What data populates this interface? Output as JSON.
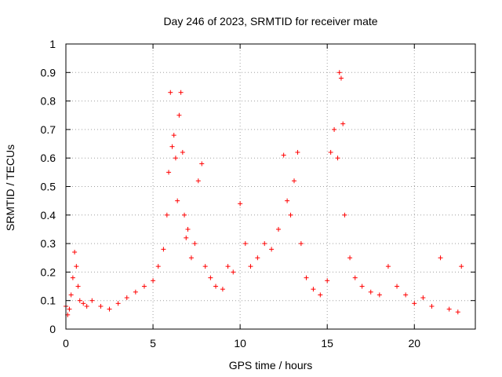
{
  "chart_data": {
    "type": "scatter",
    "title": "Day 246 of 2023, SRMTID for receiver mate",
    "xlabel": "GPS time / hours",
    "ylabel": "SRMTID / TECUs",
    "xlim": [
      0,
      23.5
    ],
    "ylim": [
      0,
      1
    ],
    "xticks": [
      0,
      5,
      10,
      15,
      20
    ],
    "xtick_labels": [
      "0",
      "5",
      "10",
      "15",
      "20"
    ],
    "yticks": [
      0,
      0.1,
      0.2,
      0.3,
      0.4,
      0.5,
      0.6,
      0.7,
      0.8,
      0.9,
      1
    ],
    "ytick_labels": [
      "0",
      "0.1",
      "0.2",
      "0.3",
      "0.4",
      "0.5",
      "0.6",
      "0.7",
      "0.8",
      "0.9",
      "1"
    ],
    "grid": true,
    "marker": "+",
    "color": "#ff0000",
    "series": [
      {
        "name": "SRMTID",
        "x": [
          0.0,
          0.1,
          0.2,
          0.3,
          0.4,
          0.5,
          0.6,
          0.7,
          0.8,
          1.0,
          1.2,
          1.5,
          2.0,
          2.5,
          3.0,
          3.5,
          4.0,
          4.5,
          5.0,
          5.3,
          5.6,
          5.8,
          5.9,
          6.0,
          6.1,
          6.2,
          6.3,
          6.4,
          6.5,
          6.6,
          6.7,
          6.8,
          6.9,
          7.0,
          7.2,
          7.4,
          7.6,
          7.8,
          8.0,
          8.3,
          8.6,
          9.0,
          9.3,
          9.6,
          10.0,
          10.3,
          10.6,
          11.0,
          11.4,
          11.8,
          12.2,
          12.5,
          12.7,
          12.9,
          13.1,
          13.3,
          13.5,
          13.8,
          14.2,
          14.6,
          15.0,
          15.2,
          15.4,
          15.6,
          15.7,
          15.8,
          15.9,
          16.0,
          16.3,
          16.6,
          17.0,
          17.5,
          18.0,
          18.5,
          19.0,
          19.5,
          20.0,
          20.5,
          21.0,
          21.5,
          22.0,
          22.5,
          22.7
        ],
        "y": [
          0.08,
          0.05,
          0.07,
          0.12,
          0.18,
          0.27,
          0.22,
          0.15,
          0.1,
          0.09,
          0.08,
          0.1,
          0.08,
          0.07,
          0.09,
          0.11,
          0.13,
          0.15,
          0.17,
          0.22,
          0.28,
          0.4,
          0.55,
          0.83,
          0.64,
          0.68,
          0.6,
          0.45,
          0.75,
          0.83,
          0.62,
          0.4,
          0.32,
          0.35,
          0.25,
          0.3,
          0.52,
          0.58,
          0.22,
          0.18,
          0.15,
          0.14,
          0.22,
          0.2,
          0.44,
          0.3,
          0.22,
          0.25,
          0.3,
          0.28,
          0.35,
          0.61,
          0.45,
          0.4,
          0.52,
          0.62,
          0.3,
          0.18,
          0.14,
          0.12,
          0.17,
          0.62,
          0.7,
          0.6,
          0.9,
          0.88,
          0.72,
          0.4,
          0.25,
          0.18,
          0.15,
          0.13,
          0.12,
          0.22,
          0.15,
          0.12,
          0.09,
          0.11,
          0.08,
          0.25,
          0.07,
          0.06,
          0.22
        ]
      }
    ]
  }
}
